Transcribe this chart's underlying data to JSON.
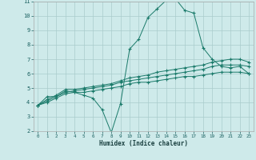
{
  "x": [
    0,
    1,
    2,
    3,
    4,
    5,
    6,
    7,
    8,
    9,
    10,
    11,
    12,
    13,
    14,
    15,
    16,
    17,
    18,
    19,
    20,
    21,
    22,
    23
  ],
  "line1": [
    3.8,
    4.4,
    4.4,
    4.8,
    4.7,
    4.5,
    4.3,
    3.5,
    1.9,
    3.9,
    7.7,
    8.4,
    9.9,
    10.5,
    11.1,
    11.2,
    10.4,
    10.2,
    7.8,
    7.0,
    6.5,
    6.4,
    6.5,
    6.0
  ],
  "line2": [
    3.8,
    4.2,
    4.5,
    4.9,
    4.9,
    5.0,
    5.1,
    5.2,
    5.3,
    5.5,
    5.7,
    5.8,
    5.9,
    6.1,
    6.2,
    6.3,
    6.4,
    6.5,
    6.6,
    6.8,
    6.9,
    7.0,
    7.0,
    6.8
  ],
  "line3": [
    3.8,
    4.1,
    4.4,
    4.7,
    4.8,
    4.9,
    5.0,
    5.1,
    5.2,
    5.4,
    5.5,
    5.6,
    5.7,
    5.8,
    5.9,
    6.0,
    6.1,
    6.2,
    6.3,
    6.5,
    6.6,
    6.6,
    6.6,
    6.5
  ],
  "line4": [
    3.8,
    4.0,
    4.3,
    4.6,
    4.7,
    4.7,
    4.8,
    4.9,
    5.0,
    5.1,
    5.3,
    5.4,
    5.4,
    5.5,
    5.6,
    5.7,
    5.8,
    5.8,
    5.9,
    6.0,
    6.1,
    6.1,
    6.1,
    6.0
  ],
  "line_color": "#1a7a6a",
  "bg_color": "#ceeaea",
  "grid_color": "#aacccc",
  "xlabel": "Humidex (Indice chaleur)",
  "xlim": [
    -0.5,
    23.5
  ],
  "ylim": [
    2,
    11
  ],
  "yticks": [
    2,
    3,
    4,
    5,
    6,
    7,
    8,
    9,
    10,
    11
  ],
  "xticks": [
    0,
    1,
    2,
    3,
    4,
    5,
    6,
    7,
    8,
    9,
    10,
    11,
    12,
    13,
    14,
    15,
    16,
    17,
    18,
    19,
    20,
    21,
    22,
    23
  ]
}
